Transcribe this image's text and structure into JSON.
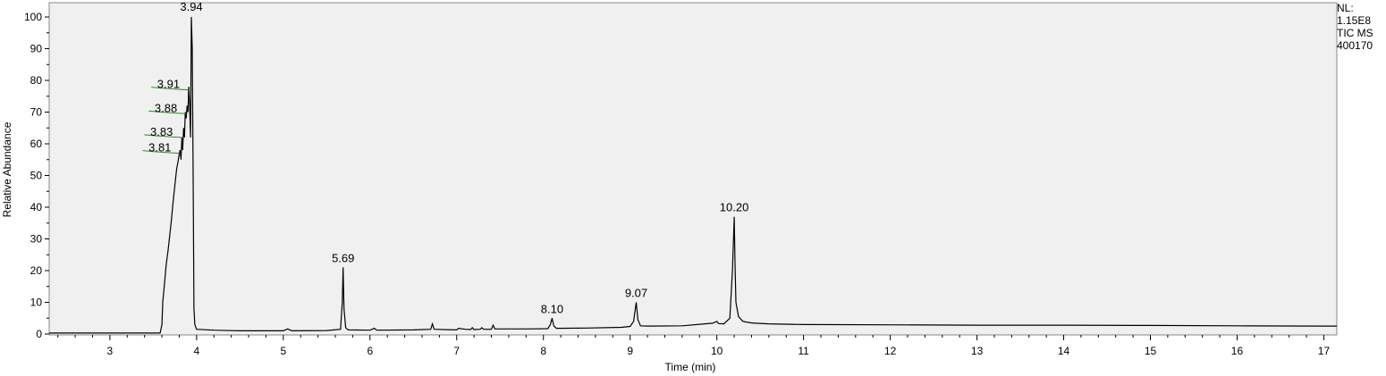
{
  "chart_data": {
    "type": "line",
    "xlabel": "Time (min)",
    "ylabel": "Relative Abundance",
    "xlim": [
      2.3,
      17.15
    ],
    "ylim": [
      0,
      100
    ],
    "x_ticks": [
      "3",
      "4",
      "5",
      "6",
      "7",
      "8",
      "9",
      "10",
      "11",
      "12",
      "13",
      "14",
      "15",
      "16",
      "17"
    ],
    "y_ticks": [
      "0",
      "10",
      "20",
      "30",
      "40",
      "50",
      "60",
      "70",
      "80",
      "90",
      "100"
    ],
    "grid": false,
    "colors": {
      "trace": "#000000",
      "plot_bg": "#f0f0f0",
      "marker": "#2e8b2e"
    },
    "series": [
      {
        "x": [
          2.3,
          2.5,
          2.8,
          3.0,
          3.3,
          3.58,
          3.6,
          3.61,
          3.63,
          3.65,
          3.67,
          3.69,
          3.71,
          3.73,
          3.75,
          3.77,
          3.79,
          3.8,
          3.81,
          3.82,
          3.83,
          3.84,
          3.85,
          3.86,
          3.87,
          3.88,
          3.89,
          3.9,
          3.91,
          3.92,
          3.93,
          3.94,
          3.95,
          3.96,
          3.97,
          3.98,
          4.0,
          4.2,
          4.5,
          5.0,
          5.05,
          5.1,
          5.5,
          5.66,
          5.68,
          5.69,
          5.7,
          5.72,
          5.75,
          6.0,
          6.05,
          6.08,
          6.5,
          6.7,
          6.72,
          6.74,
          7.0,
          7.02,
          7.1,
          7.16,
          7.18,
          7.2,
          7.27,
          7.29,
          7.31,
          7.4,
          7.42,
          7.44,
          7.8,
          8.05,
          8.08,
          8.1,
          8.12,
          8.15,
          8.5,
          8.9,
          9.0,
          9.04,
          9.07,
          9.09,
          9.12,
          9.2,
          9.6,
          9.95,
          10.0,
          10.02,
          10.08,
          10.15,
          10.18,
          10.2,
          10.21,
          10.22,
          10.25,
          10.3,
          10.4,
          10.6,
          11.0,
          12.0,
          13.0,
          14.0,
          15.0,
          16.0,
          17.0,
          17.15
        ],
        "values": [
          0.3,
          0.3,
          0.3,
          0.3,
          0.3,
          0.3,
          3,
          10,
          16,
          22,
          26,
          31,
          36,
          42,
          47,
          52,
          55,
          57,
          58,
          55,
          62,
          58,
          65,
          62,
          70,
          68,
          72,
          70,
          78,
          72,
          62,
          100,
          90,
          50,
          8,
          3,
          1.5,
          1.2,
          1.0,
          1.0,
          1.6,
          1.0,
          1.1,
          1.5,
          10,
          21,
          8,
          2,
          1.3,
          1.2,
          1.8,
          1.2,
          1.3,
          1.5,
          3.2,
          1.5,
          1.3,
          1.8,
          1.5,
          1.4,
          2.0,
          1.4,
          1.5,
          2.0,
          1.5,
          1.5,
          2.8,
          1.6,
          1.6,
          1.7,
          3.0,
          5.0,
          2.5,
          1.8,
          1.9,
          2.1,
          2.4,
          4.0,
          10,
          4.5,
          2.6,
          2.5,
          2.6,
          3.4,
          4.0,
          3.3,
          3.2,
          5.0,
          20,
          37,
          22,
          10,
          5.5,
          4.0,
          3.5,
          3.2,
          3.0,
          2.9,
          2.8,
          2.8,
          2.7,
          2.6,
          2.5,
          2.5
        ]
      }
    ],
    "peak_labels": [
      {
        "text": "3.94",
        "x": 3.94,
        "y": 100
      },
      {
        "text": "3.91",
        "x": 3.91,
        "y": 77
      },
      {
        "text": "3.88",
        "x": 3.88,
        "y": 69.5
      },
      {
        "text": "3.83",
        "x": 3.83,
        "y": 62
      },
      {
        "text": "3.81",
        "x": 3.81,
        "y": 57
      },
      {
        "text": "5.69",
        "x": 5.69,
        "y": 21
      },
      {
        "text": "8.10",
        "x": 8.1,
        "y": 5
      },
      {
        "text": "9.07",
        "x": 9.07,
        "y": 10
      },
      {
        "text": "10.20",
        "x": 10.2,
        "y": 37
      }
    ],
    "info": {
      "nl_label": "NL:",
      "nl_value": "1.15E8",
      "trace_type": "TIC  MS",
      "sample": "400170"
    }
  }
}
